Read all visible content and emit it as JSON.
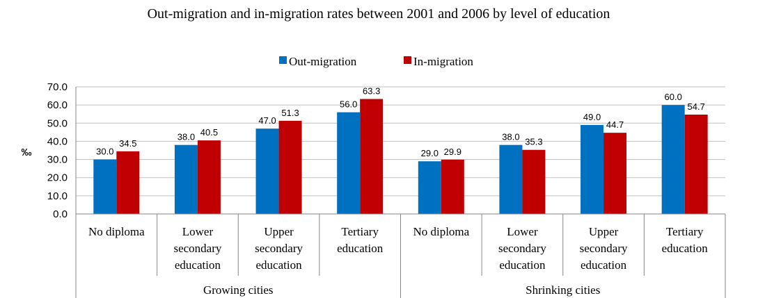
{
  "chart_data": {
    "type": "bar",
    "title": "Out-migration and in-migration rates between 2001 and 2006 by level of education",
    "ylabel": "‰",
    "xlabel": "",
    "ylim": [
      0,
      70
    ],
    "yticks": [
      "0.0",
      "10.0",
      "20.0",
      "30.0",
      "40.0",
      "50.0",
      "60.0",
      "70.0"
    ],
    "grid": true,
    "legend_position": "top-center",
    "groups": [
      {
        "name": "Growing cities",
        "categories": [
          [
            "No diploma"
          ],
          [
            "Lower",
            "secondary",
            "education"
          ],
          [
            "Upper",
            "secondary",
            "education"
          ],
          [
            "Tertiary",
            "education"
          ]
        ]
      },
      {
        "name": "Shrinking cities",
        "categories": [
          [
            "No diploma"
          ],
          [
            "Lower",
            "secondary",
            "education"
          ],
          [
            "Upper",
            "secondary",
            "education"
          ],
          [
            "Tertiary",
            "education"
          ]
        ]
      }
    ],
    "series": [
      {
        "name": "Out-migration",
        "color": "#0070C0",
        "values": [
          30.0,
          38.0,
          47.0,
          56.0,
          29.0,
          38.0,
          49.0,
          60.0
        ],
        "labels": [
          "30.0",
          "38.0",
          "47.0",
          "56.0",
          "29.0",
          "38.0",
          "49.0",
          "60.0"
        ]
      },
      {
        "name": "In-migration",
        "color": "#C00000",
        "values": [
          34.5,
          40.5,
          51.3,
          63.3,
          29.9,
          35.3,
          44.7,
          54.7
        ],
        "labels": [
          "34.5",
          "40.5",
          "51.3",
          "63.3",
          "29.9",
          "35.3",
          "44.7",
          "54.7"
        ]
      }
    ]
  }
}
